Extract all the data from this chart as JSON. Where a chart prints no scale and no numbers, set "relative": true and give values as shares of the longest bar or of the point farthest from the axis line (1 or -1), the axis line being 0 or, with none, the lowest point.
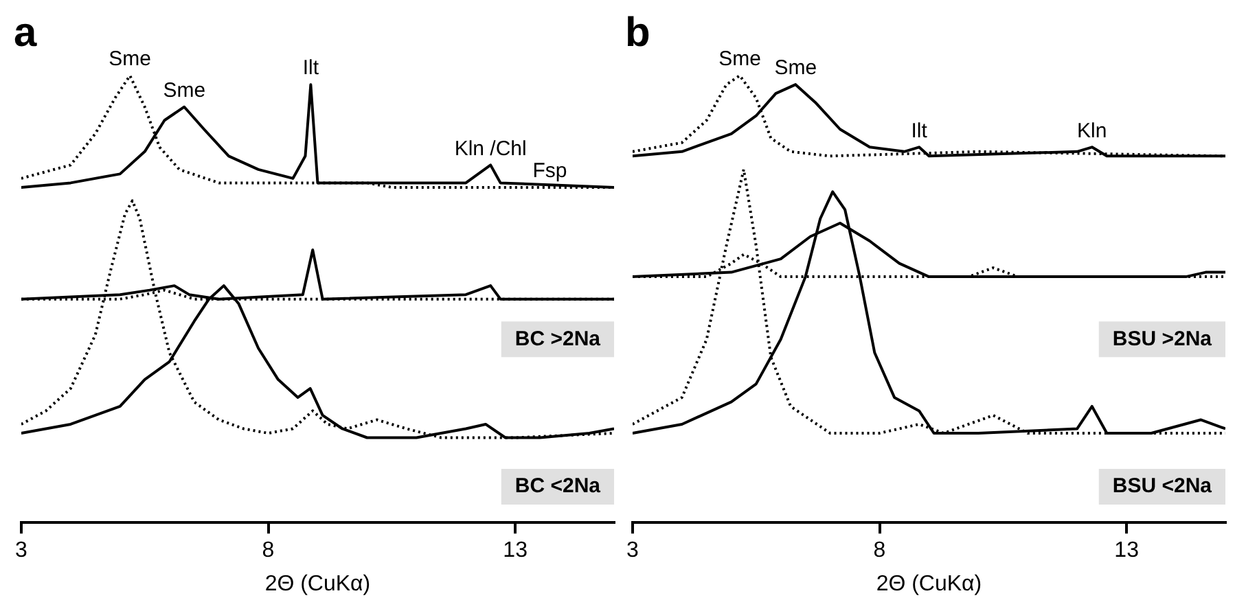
{
  "chart_data": [
    {
      "type": "line",
      "title": "a",
      "xlabel": "2Θ (CuKα)",
      "xlim": [
        3,
        15
      ],
      "xticks": [
        3,
        8,
        13
      ],
      "relative": true,
      "tick_labels": "x",
      "grid": false,
      "legend": false,
      "marker": "none",
      "series": [
        {
          "color": "#000000",
          "line_style": "dotted",
          "x": [
            3,
            4,
            4.5,
            4.9,
            5.2,
            5.5,
            5.8,
            6.2,
            7,
            8.5,
            10,
            10.5,
            15
          ],
          "values": [
            0.77,
            0.8,
            0.87,
            0.95,
            1.0,
            0.93,
            0.84,
            0.79,
            0.76,
            0.76,
            0.76,
            0.75,
            0.75
          ]
        },
        {
          "color": "#000000",
          "line_style": "solid",
          "x": [
            3,
            4,
            5,
            5.5,
            5.9,
            6.3,
            6.7,
            7.2,
            7.8,
            8.5,
            8.75,
            8.86,
            9,
            9.5,
            12,
            12.5,
            12.7,
            15
          ],
          "values": [
            0.75,
            0.76,
            0.78,
            0.83,
            0.9,
            0.93,
            0.88,
            0.82,
            0.79,
            0.77,
            0.82,
            0.98,
            0.76,
            0.76,
            0.76,
            0.8,
            0.76,
            0.75
          ]
        },
        {
          "color": "#000000",
          "line_style": "dotted",
          "x": [
            3,
            5,
            5.5,
            5.9,
            6.5,
            8,
            15
          ],
          "values": [
            0.5,
            0.5,
            0.51,
            0.52,
            0.5,
            0.5,
            0.5
          ]
        },
        {
          "color": "#000000",
          "line_style": "solid",
          "x": [
            3,
            5,
            5.6,
            6.1,
            6.4,
            7,
            8.7,
            8.9,
            9.1,
            12,
            12.5,
            12.7,
            15
          ],
          "values": [
            0.5,
            0.51,
            0.52,
            0.53,
            0.51,
            0.5,
            0.51,
            0.61,
            0.5,
            0.51,
            0.53,
            0.5,
            0.5
          ]
        },
        {
          "color": "#000000",
          "line_style": "dotted",
          "x": [
            3,
            3.5,
            4,
            4.5,
            4.8,
            5.1,
            5.25,
            5.4,
            5.7,
            6,
            6.5,
            7,
            7.5,
            8,
            8.5,
            8.9,
            9.2,
            9.6,
            10.2,
            10.8,
            11.5,
            13,
            15
          ],
          "values": [
            0.22,
            0.25,
            0.3,
            0.42,
            0.56,
            0.69,
            0.72,
            0.68,
            0.52,
            0.38,
            0.27,
            0.23,
            0.21,
            0.2,
            0.21,
            0.25,
            0.22,
            0.21,
            0.23,
            0.21,
            0.19,
            0.19,
            0.2
          ]
        },
        {
          "color": "#000000",
          "line_style": "solid",
          "x": [
            3,
            4,
            5,
            5.5,
            6,
            6.5,
            6.8,
            7.1,
            7.4,
            7.8,
            8.2,
            8.6,
            8.85,
            9.1,
            9.5,
            10,
            11,
            12,
            12.4,
            12.8,
            13.5,
            14.5,
            15
          ],
          "values": [
            0.2,
            0.22,
            0.26,
            0.32,
            0.36,
            0.45,
            0.5,
            0.53,
            0.49,
            0.39,
            0.32,
            0.28,
            0.3,
            0.24,
            0.21,
            0.19,
            0.19,
            0.21,
            0.22,
            0.19,
            0.19,
            0.2,
            0.21
          ]
        }
      ],
      "annotations": [
        {
          "text": "Sme",
          "x": 5.2,
          "y": 1.0
        },
        {
          "text": "Sme",
          "x": 6.3,
          "y": 0.93
        },
        {
          "text": "Ilt",
          "x": 8.86,
          "y": 0.98
        },
        {
          "text": "Kln /Chl",
          "x": 12.5,
          "y": 0.8
        },
        {
          "text": "Fsp",
          "x": 13.7,
          "y": 0.75
        },
        "BC >2Na",
        "BC <2Na"
      ]
    },
    {
      "type": "line",
      "title": "b",
      "xlabel": "2Θ (CuKα)",
      "xlim": [
        3,
        15
      ],
      "xticks": [
        3,
        8,
        13
      ],
      "relative": true,
      "tick_labels": "x",
      "grid": false,
      "legend": false,
      "marker": "none",
      "series": [
        {
          "color": "#000000",
          "line_style": "dotted",
          "x": [
            3,
            4,
            4.5,
            4.9,
            5.17,
            5.5,
            5.8,
            6.2,
            7,
            10,
            15
          ],
          "values": [
            0.83,
            0.85,
            0.9,
            0.98,
            1.0,
            0.95,
            0.86,
            0.83,
            0.82,
            0.83,
            0.82
          ]
        },
        {
          "color": "#000000",
          "line_style": "solid",
          "x": [
            3,
            4,
            5,
            5.5,
            5.9,
            6.3,
            6.7,
            7.2,
            7.8,
            8.5,
            8.8,
            9,
            12,
            12.3,
            12.6,
            15
          ],
          "values": [
            0.82,
            0.83,
            0.87,
            0.91,
            0.96,
            0.98,
            0.94,
            0.88,
            0.84,
            0.83,
            0.84,
            0.82,
            0.83,
            0.84,
            0.82,
            0.82
          ]
        },
        {
          "color": "#000000",
          "line_style": "dotted",
          "x": [
            3,
            4.5,
            5,
            5.25,
            5.6,
            6,
            7,
            9.8,
            10.3,
            10.8,
            15
          ],
          "values": [
            0.55,
            0.55,
            0.58,
            0.6,
            0.58,
            0.55,
            0.55,
            0.55,
            0.57,
            0.55,
            0.55
          ]
        },
        {
          "color": "#000000",
          "line_style": "solid",
          "x": [
            3,
            5,
            6,
            6.6,
            7.2,
            7.8,
            8.4,
            9,
            12,
            14.2,
            14.6,
            15
          ],
          "values": [
            0.55,
            0.56,
            0.59,
            0.64,
            0.67,
            0.63,
            0.58,
            0.55,
            0.55,
            0.55,
            0.56,
            0.56
          ]
        },
        {
          "color": "#000000",
          "line_style": "dotted",
          "x": [
            3,
            4,
            4.5,
            4.9,
            5.25,
            5.5,
            5.8,
            6.2,
            7,
            8,
            8.8,
            9.3,
            10.3,
            11,
            15
          ],
          "values": [
            0.22,
            0.28,
            0.41,
            0.62,
            0.79,
            0.62,
            0.37,
            0.26,
            0.2,
            0.2,
            0.22,
            0.2,
            0.24,
            0.2,
            0.2
          ]
        },
        {
          "color": "#000000",
          "line_style": "solid",
          "x": [
            3,
            4,
            5,
            5.5,
            6,
            6.5,
            6.8,
            7.05,
            7.3,
            7.6,
            7.9,
            8.3,
            8.8,
            9.1,
            10,
            12,
            12.3,
            12.6,
            13.5,
            14.5,
            15
          ],
          "values": [
            0.2,
            0.22,
            0.27,
            0.31,
            0.41,
            0.55,
            0.68,
            0.74,
            0.7,
            0.55,
            0.38,
            0.28,
            0.25,
            0.2,
            0.2,
            0.21,
            0.26,
            0.2,
            0.2,
            0.23,
            0.21
          ]
        }
      ],
      "annotations": [
        {
          "text": "Sme",
          "x": 5.17,
          "y": 1.0
        },
        {
          "text": "Sme",
          "x": 6.3,
          "y": 0.98
        },
        {
          "text": "Ilt",
          "x": 8.8,
          "y": 0.84
        },
        {
          "text": "Kln",
          "x": 12.3,
          "y": 0.84
        },
        "BSU >2Na",
        "BSU <2Na"
      ]
    }
  ]
}
